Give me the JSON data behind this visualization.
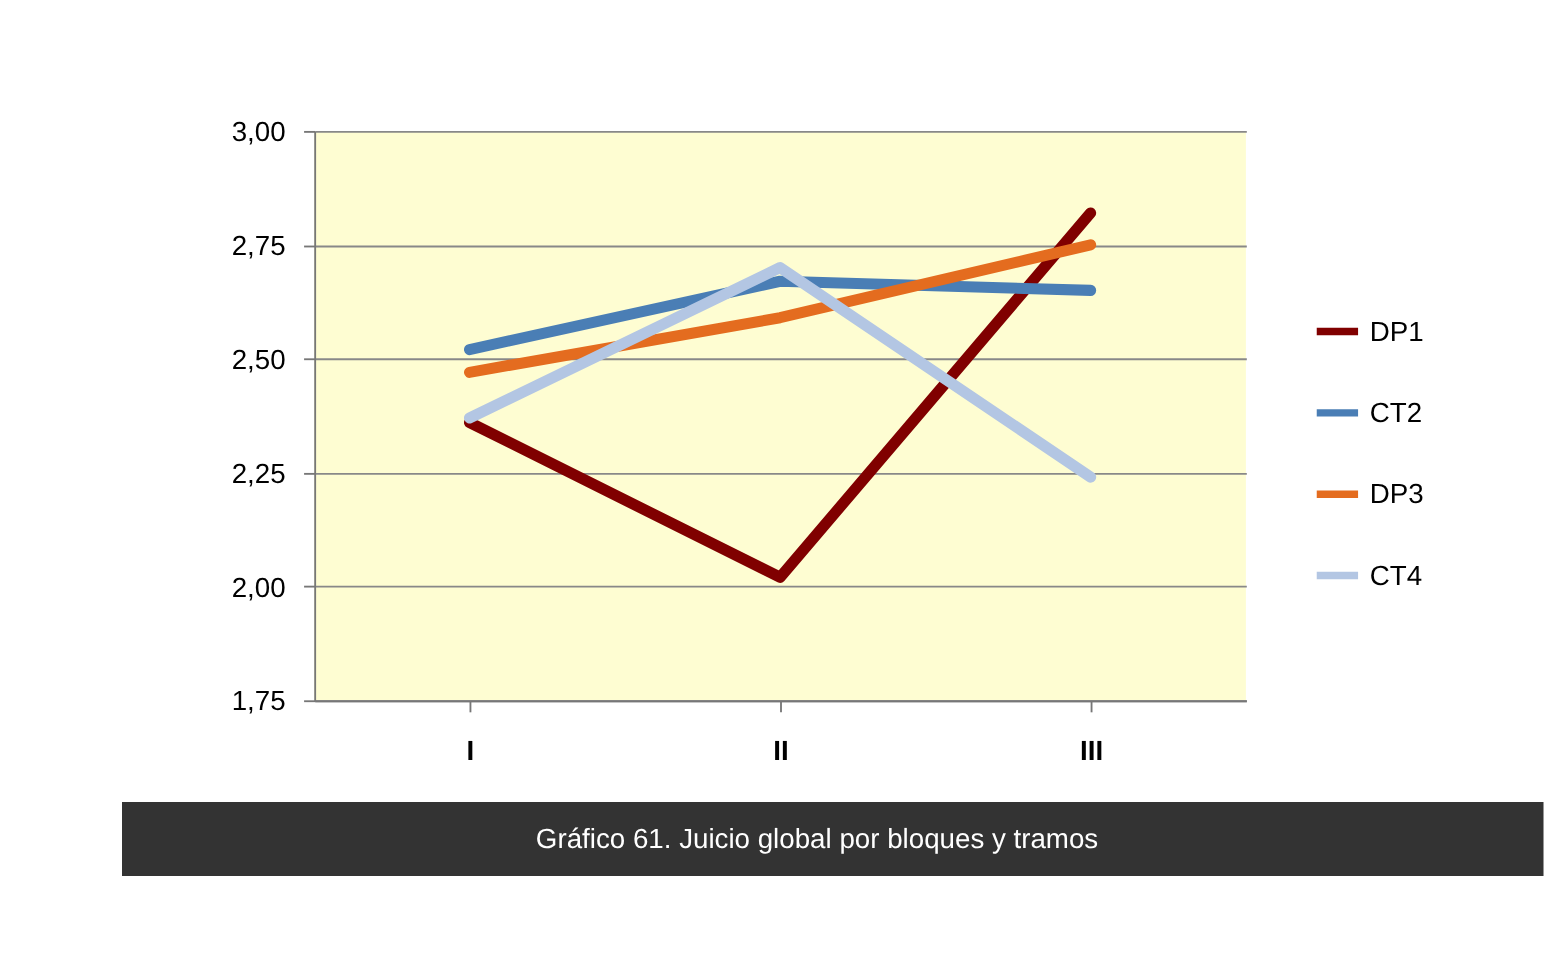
{
  "chart_data": {
    "type": "line",
    "categories": [
      "I",
      "II",
      "III"
    ],
    "series": [
      {
        "name": "DP1",
        "color": "#800000",
        "values": [
          2.36,
          2.02,
          2.82
        ]
      },
      {
        "name": "CT2",
        "color": "#4a7eb5",
        "values": [
          2.52,
          2.67,
          2.65
        ]
      },
      {
        "name": "DP3",
        "color": "#e46c1f",
        "values": [
          2.47,
          2.59,
          2.75
        ]
      },
      {
        "name": "CT4",
        "color": "#b3c6e3",
        "values": [
          2.37,
          2.7,
          2.24
        ]
      }
    ],
    "ylim": [
      1.75,
      3.0
    ],
    "yticks": [
      {
        "value": 1.75,
        "label": "1,75"
      },
      {
        "value": 2.0,
        "label": "2,00"
      },
      {
        "value": 2.25,
        "label": "2,25"
      },
      {
        "value": 2.5,
        "label": "2,50"
      },
      {
        "value": 2.75,
        "label": "2,75"
      },
      {
        "value": 3.0,
        "label": "3,00"
      }
    ],
    "grid": "y",
    "legend": "right",
    "marker": "none",
    "line_style": "solid",
    "annotations": [
      "Gráfico 61. Juicio global por bloques y tramos"
    ]
  }
}
